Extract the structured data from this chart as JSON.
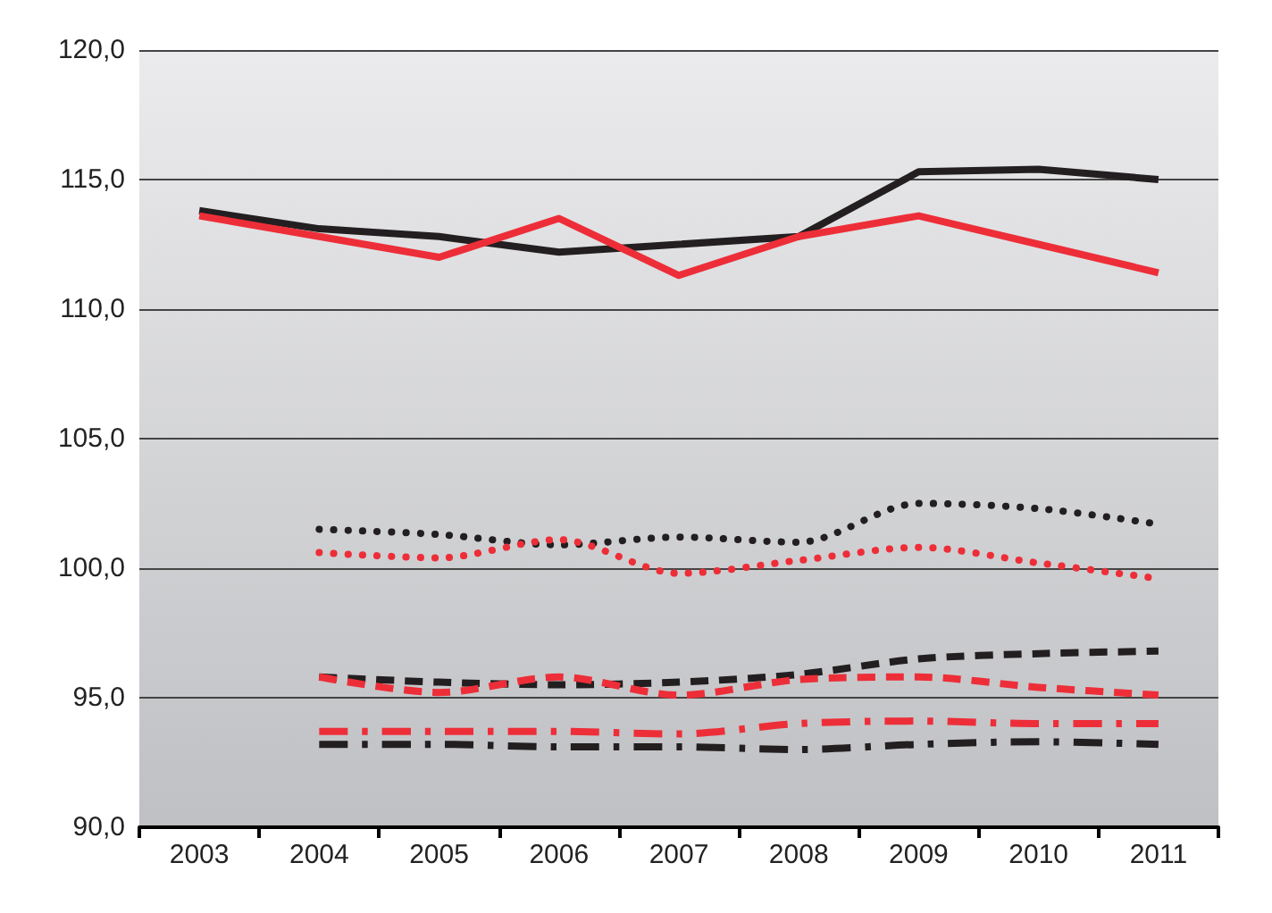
{
  "chart_data": {
    "type": "line",
    "categories": [
      "2003",
      "2004",
      "2005",
      "2006",
      "2007",
      "2008",
      "2009",
      "2010",
      "2011"
    ],
    "series": [
      {
        "color": "#231f20",
        "line_style": "solid",
        "values": [
          113.8,
          113.1,
          112.8,
          112.2,
          112.5,
          112.8,
          115.3,
          115.4,
          115.0
        ]
      },
      {
        "color": "#ed2e38",
        "line_style": "solid",
        "values": [
          113.6,
          112.8,
          112.0,
          113.5,
          111.3,
          112.8,
          113.6,
          112.5,
          111.4
        ]
      },
      {
        "color": "#231f20",
        "line_style": "dotted",
        "values": [
          null,
          101.5,
          101.3,
          100.9,
          101.2,
          101.0,
          102.5,
          102.3,
          101.7
        ]
      },
      {
        "color": "#ed2e38",
        "line_style": "dotted",
        "values": [
          null,
          100.6,
          100.4,
          101.1,
          99.8,
          100.3,
          100.8,
          100.2,
          99.6
        ]
      },
      {
        "color": "#231f20",
        "line_style": "dashed",
        "values": [
          null,
          95.8,
          95.6,
          95.5,
          95.6,
          95.9,
          96.5,
          96.7,
          96.8
        ]
      },
      {
        "color": "#ed2e38",
        "line_style": "dashed",
        "values": [
          null,
          95.8,
          95.2,
          95.8,
          95.1,
          95.7,
          95.8,
          95.4,
          95.1
        ]
      },
      {
        "color": "#ed2e38",
        "line_style": "dashdot",
        "values": [
          null,
          93.7,
          93.7,
          93.7,
          93.6,
          94.0,
          94.1,
          94.0,
          94.0
        ]
      },
      {
        "color": "#231f20",
        "line_style": "dashdot",
        "values": [
          null,
          93.2,
          93.2,
          93.1,
          93.1,
          93.0,
          93.2,
          93.3,
          93.2
        ]
      }
    ],
    "ylim": [
      90,
      120
    ],
    "yticks": [
      {
        "value": 90,
        "label": "90,0"
      },
      {
        "value": 95,
        "label": "95,0"
      },
      {
        "value": 100,
        "label": "100,0"
      },
      {
        "value": 105,
        "label": "105,0"
      },
      {
        "value": 110,
        "label": "110,0"
      },
      {
        "value": 115,
        "label": "115,0"
      },
      {
        "value": 120,
        "label": "120,0"
      }
    ],
    "grid": "y",
    "marker": "none"
  }
}
